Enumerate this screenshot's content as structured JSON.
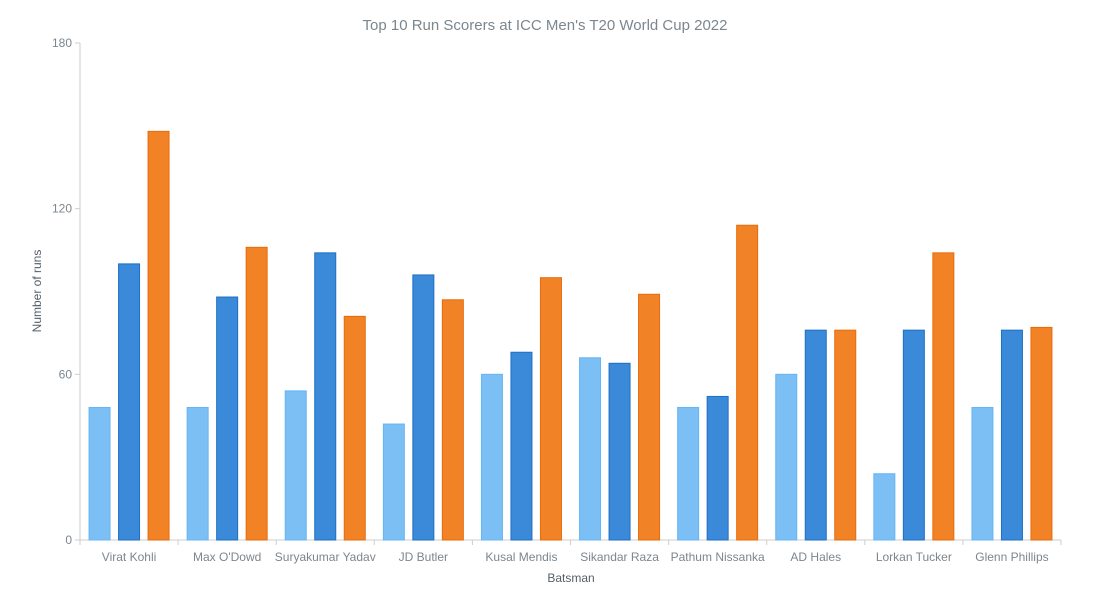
{
  "chart_data": {
    "type": "bar",
    "title": "Top 10 Run Scorers at ICC Men's T20 World Cup 2022",
    "xlabel": "Batsman",
    "ylabel": "Number of runs",
    "ylim": [
      0,
      180
    ],
    "yticks": [
      0,
      60,
      120,
      180
    ],
    "grid": false,
    "legend": "none",
    "categories": [
      "Virat Kohli",
      "Max O'Dowd",
      "Suryakumar Yadav",
      "JD Butler",
      "Kusal Mendis",
      "Sikandar Raza",
      "Pathum Nissanka",
      "AD Hales",
      "Lorkan Tucker",
      "Glenn Phillips"
    ],
    "series": [
      {
        "color": "#7cbff4",
        "stroke": "#64b5f6",
        "values": [
          48,
          48,
          54,
          42,
          60,
          66,
          48,
          60,
          24,
          48
        ]
      },
      {
        "color": "#3a8ad9",
        "stroke": "#1f6fc4",
        "values": [
          100,
          88,
          104,
          96,
          68,
          64,
          52,
          76,
          76,
          76
        ]
      },
      {
        "color": "#f28226",
        "stroke": "#e66c0b",
        "values": [
          148,
          106,
          81,
          87,
          95,
          89,
          114,
          76,
          104,
          77
        ]
      }
    ]
  }
}
